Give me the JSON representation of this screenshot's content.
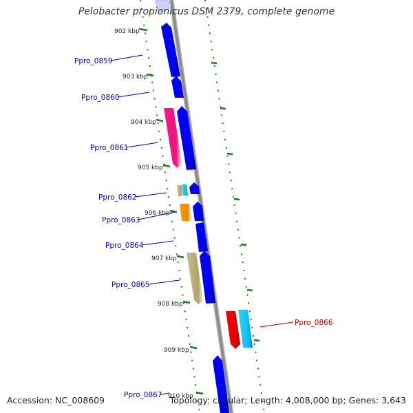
{
  "title": "Pelobacter propionicus DSM 2379, complete genome",
  "footer": {
    "accession": "Accession: NC_008609",
    "summary": "Topology: circular; Length: 4,008,000 bp; Genes: 3,643"
  },
  "colors": {
    "forward_gene": "#0000ee",
    "reverse_gene_red": "#ee0000",
    "reverse_gene_cyan": "#11c4f4",
    "pink_gene": "#ee1a8c",
    "khaki_gene": "#b8b07a",
    "orange_gene": "#f08a00",
    "backbone": "#8c8c8c",
    "tick": "#1a7a1a",
    "label_blue": "#0000bb",
    "label_red": "#cc0000"
  },
  "ticks": [
    {
      "label": "902 kbp"
    },
    {
      "label": "903 kbp"
    },
    {
      "label": "904 kbp"
    },
    {
      "label": "905 kbp"
    },
    {
      "label": "906 kbp"
    },
    {
      "label": "907 kbp"
    },
    {
      "label": "908 kbp"
    },
    {
      "label": "909 kbp"
    },
    {
      "label": "910 kbp"
    }
  ],
  "genes": [
    {
      "label": "Ppro_0859",
      "strand": "forward"
    },
    {
      "label": "Ppro_0860",
      "strand": "forward"
    },
    {
      "label": "Ppro_0861",
      "strand": "forward"
    },
    {
      "label": "Ppro_0862",
      "strand": "forward"
    },
    {
      "label": "Ppro_0863",
      "strand": "forward"
    },
    {
      "label": "Ppro_0864",
      "strand": "forward"
    },
    {
      "label": "Ppro_0865",
      "strand": "forward"
    },
    {
      "label": "Ppro_0866",
      "strand": "reverse"
    },
    {
      "label": "Ppro_0867",
      "strand": "forward"
    }
  ]
}
